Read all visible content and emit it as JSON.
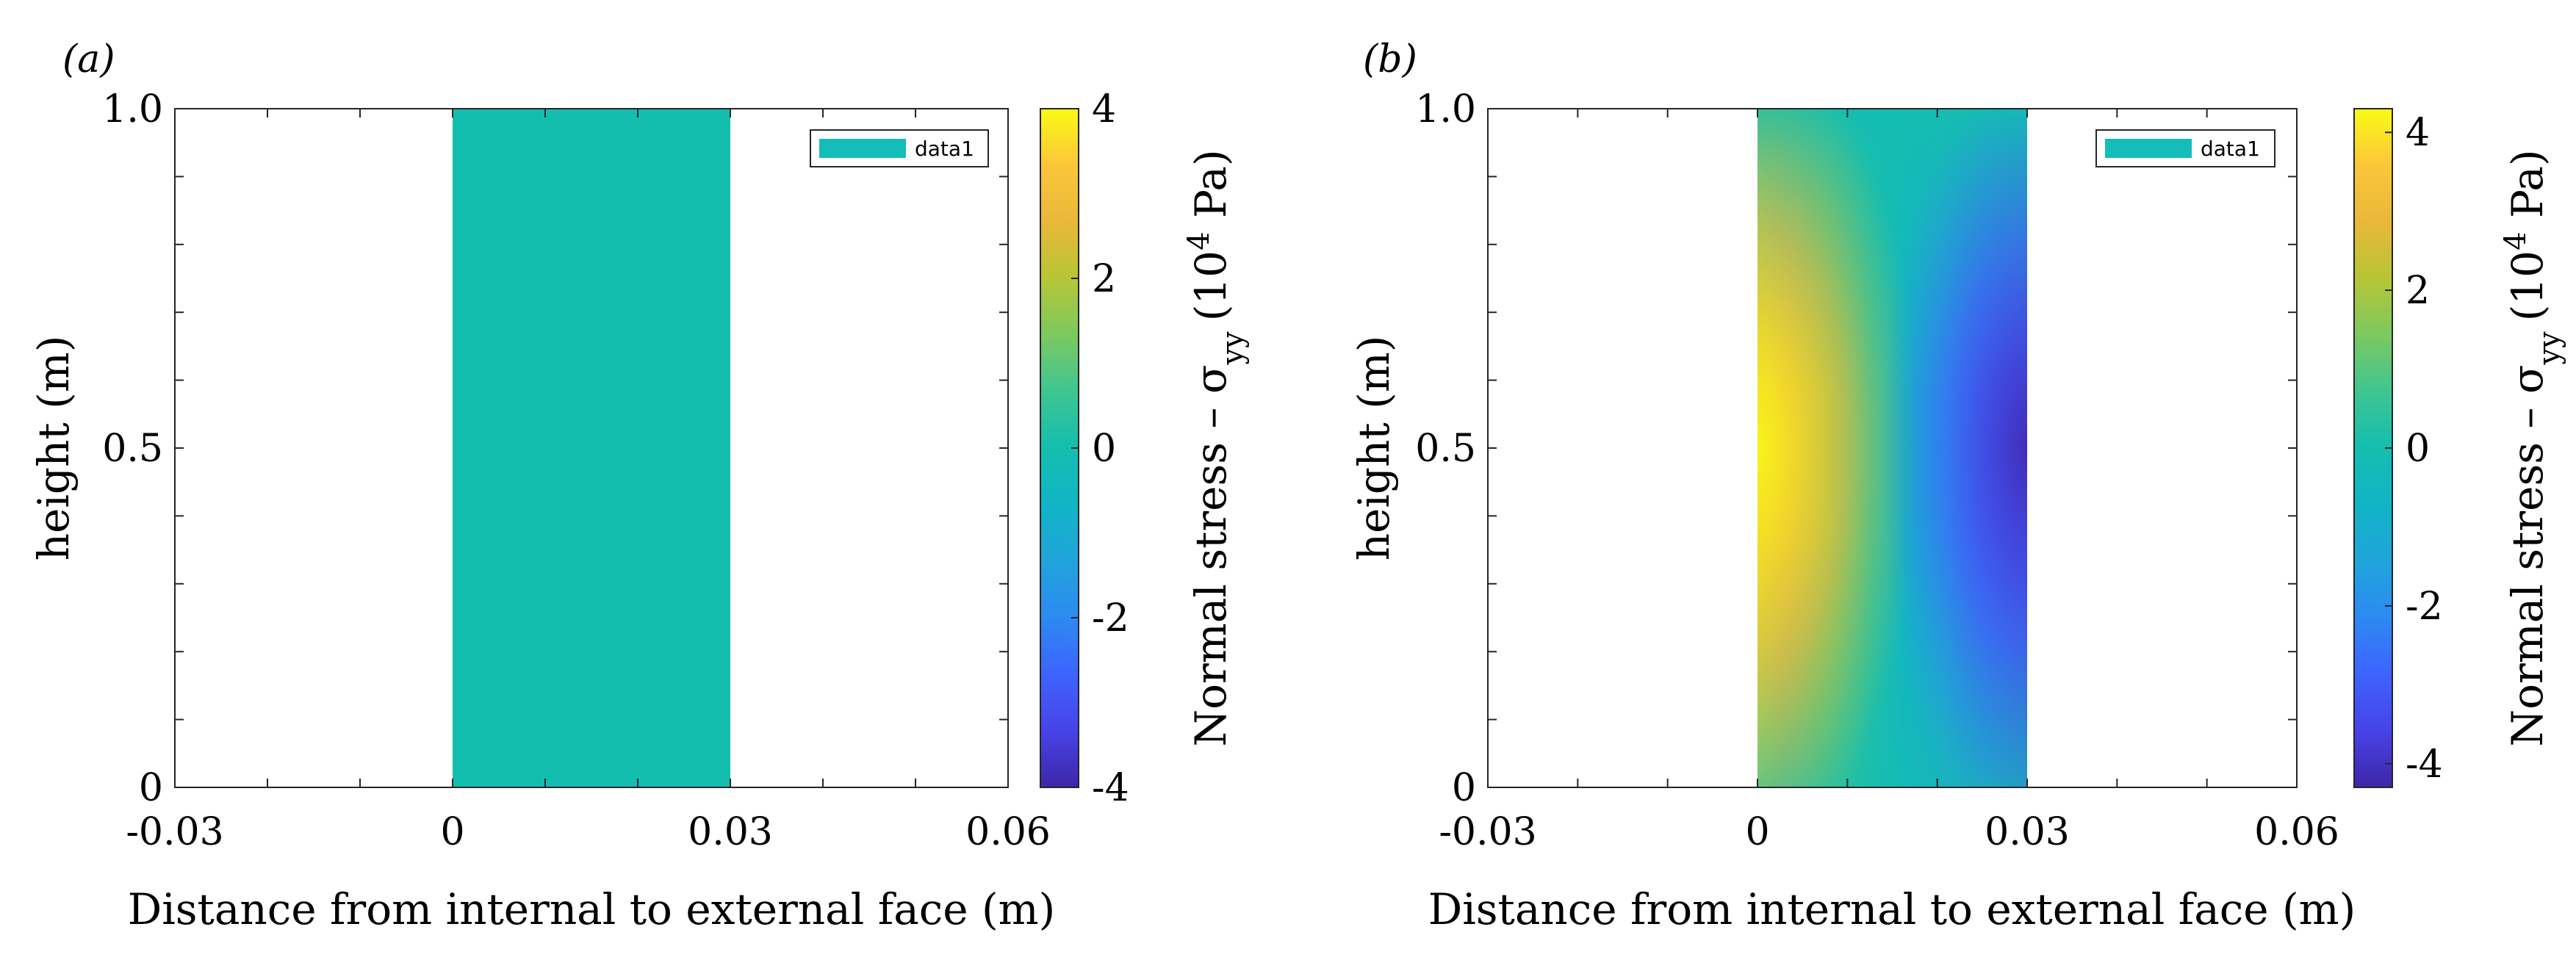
{
  "chart_data": [
    {
      "panel_label": "(a)",
      "type": "heatmap",
      "xlabel": "Distance from internal to external face (m)",
      "ylabel": "height (m)",
      "xlim": [
        -0.03,
        0.06
      ],
      "ylim": [
        0,
        1.0
      ],
      "xticks": [
        -0.03,
        0,
        0.03,
        0.06
      ],
      "xtick_labels": [
        "-0.03",
        "0",
        "0.03",
        "0.06"
      ],
      "yticks": [
        0,
        0.5,
        1.0
      ],
      "ytick_labels": [
        "0",
        "0.5",
        "1.0"
      ],
      "legend": {
        "entry": "data1",
        "position": "top-right",
        "color": "#14BDB8"
      },
      "field": {
        "x_range": [
          0,
          0.03
        ],
        "y_range": [
          0,
          1.0
        ],
        "description": "uniform",
        "value": 0
      },
      "colorbar": {
        "label_prefix": "Normal stress – σ",
        "label_sub": "yy",
        "label_unit_open": "(10",
        "label_sup": "4",
        "label_unit_close": " Pa)",
        "range": [
          -4,
          4
        ],
        "ticks": [
          -4,
          -2,
          0,
          2,
          4
        ],
        "tick_labels": [
          "-4",
          "-2",
          "0",
          "2",
          "4"
        ]
      },
      "grid": false
    },
    {
      "panel_label": "(b)",
      "type": "heatmap",
      "xlabel": "Distance from internal to external face (m)",
      "ylabel": "height (m)",
      "xlim": [
        -0.03,
        0.06
      ],
      "ylim": [
        0,
        1.0
      ],
      "xticks": [
        -0.03,
        0,
        0.03,
        0.06
      ],
      "xtick_labels": [
        "-0.03",
        "0",
        "0.03",
        "0.06"
      ],
      "yticks": [
        0,
        0.5,
        1.0
      ],
      "ytick_labels": [
        "0",
        "0.5",
        "1.0"
      ],
      "legend": {
        "entry": "data1",
        "position": "top-right",
        "color": "#14BDB8"
      },
      "field": {
        "x_range": [
          0,
          0.03
        ],
        "y_range": [
          0,
          1.0
        ],
        "description": "stress max ~+4e4 Pa at internal face mid-height, min ~-4e4 Pa at external face mid-height, near 0 at top",
        "max_value": 4,
        "min_value": -4
      },
      "colorbar": {
        "label_prefix": "Normal stress – σ",
        "label_sub": "yy",
        "label_unit_open": "(10",
        "label_sup": "4",
        "label_unit_close": " Pa)",
        "range": [
          -4.3,
          4.3
        ],
        "ticks": [
          -4,
          -2,
          0,
          2,
          4
        ],
        "tick_labels": [
          "-4",
          "-2",
          "0",
          "2",
          "4"
        ]
      },
      "grid": false
    }
  ],
  "colormap": [
    "#3E26A8",
    "#4743E8",
    "#3E63FE",
    "#2D8AF2",
    "#20A4DB",
    "#11B4C6",
    "#14BEAE",
    "#3FC592",
    "#7CC95F",
    "#B7C536",
    "#E9B83A",
    "#FCC63A",
    "#F9FB14"
  ]
}
